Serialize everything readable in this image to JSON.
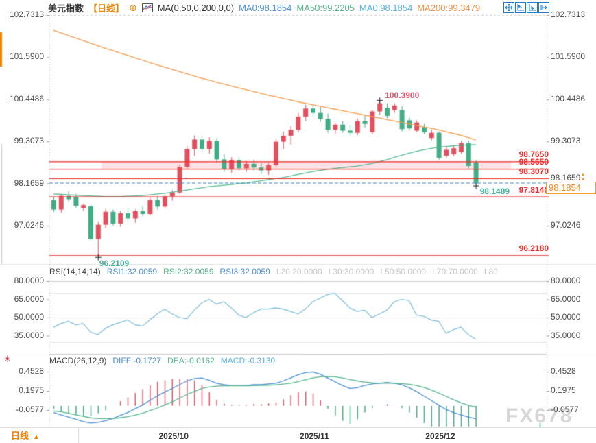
{
  "header": {
    "symbol": "美元指数",
    "period": "【日线】",
    "add_icon": "⊕",
    "ma_group": "MA(0,50,0,200,0,0)",
    "ma0": "MA0:98.1854",
    "ma50": "MA50:99.2205",
    "ma0_2": "MA0:98.1854",
    "ma200": "MA200:99.3479"
  },
  "toolbar": {
    "icons": [
      "pan-crosshair-icon",
      "zoom-axis-left-icon",
      "zoom-axis-right-icon",
      "pan-right-icon"
    ]
  },
  "main": {
    "axis_labels": [
      "102.7313",
      "101.5900",
      "100.4486",
      "99.3073",
      "98.1659",
      "97.0246"
    ],
    "level_labels": [
      "98.7650",
      "98.5650",
      "98.3070",
      "97.8140",
      "96.2180"
    ],
    "annotations": {
      "swing_high": "100.3900",
      "swing_low": "96.2109",
      "last_low": "98.1489"
    },
    "current_price": "98.1854"
  },
  "rsi": {
    "title": "RSI(14,14,14)",
    "rsi1": "RSI1:32.0059",
    "rsi2": "RSI2:32.0059",
    "rsi3": "RSI3:32.0059",
    "l20": "L20:20.0000",
    "l30": "L30:30.0000",
    "l50": "L50:50.0000",
    "l70": "L70:70.0000",
    "l80": "L80:",
    "axis_labels": [
      "80.0000",
      "65.0000",
      "50.0000",
      "35.0000"
    ]
  },
  "macd": {
    "title": "MACD(26,12,9)",
    "diff": "DIFF:-0.1727",
    "dea": "DEA:-0.0162",
    "macd": "MACD:-0.3130",
    "axis_labels": [
      "0.4528",
      "0.1975",
      "-0.0577"
    ]
  },
  "footer": {
    "period": "日线",
    "period_arrow": "▲"
  },
  "watermark": "FX678",
  "colors": {
    "up": "#e1505e",
    "down": "#42ad85",
    "ma50": "#53bb92",
    "ma200": "#f39a4b",
    "level_line": "#ee2b2b",
    "band_fill": "rgba(242,123,123,0.22)",
    "current_line": "#2f7ed8",
    "rsi_line": "#76badb",
    "diff_line": "#4a90d9",
    "dea_line": "#54b68c",
    "hist_pos": "#d8596b",
    "hist_neg": "#44ab82",
    "accent_orange": "#f08300",
    "grid": "#cccccc",
    "icon_blue": "#1a7fd4"
  },
  "chart_data": {
    "type": "candlestick",
    "title": "美元指数 日线 (US Dollar Index, Daily)",
    "price_axis_ticks": [
      102.7313,
      101.59,
      100.4486,
      99.3073,
      98.1659,
      97.0246
    ],
    "levels": [
      98.765,
      98.565,
      98.307,
      97.814,
      96.218
    ],
    "band": [
      98.565,
      98.765
    ],
    "current_price": 98.1854,
    "swing_high": {
      "index": 44,
      "price": 100.39
    },
    "swing_low": {
      "index": 6,
      "price": 96.2109
    },
    "last_low": {
      "index": 57,
      "price": 98.1489
    },
    "x_axis": {
      "months": [
        {
          "label": "2025/10",
          "index": 14
        },
        {
          "label": "2025/11",
          "index": 33
        },
        {
          "label": "2025/12",
          "index": 50
        }
      ]
    },
    "candles": [
      [
        97.72,
        97.8,
        97.4,
        97.46
      ],
      [
        97.46,
        97.88,
        97.38,
        97.83
      ],
      [
        97.83,
        97.95,
        97.68,
        97.74
      ],
      [
        97.8,
        97.88,
        97.5,
        97.56
      ],
      [
        97.5,
        97.62,
        97.42,
        97.58
      ],
      [
        97.55,
        97.6,
        96.6,
        96.66
      ],
      [
        96.66,
        97.12,
        96.2109,
        97.05
      ],
      [
        97.05,
        97.48,
        96.95,
        97.4
      ],
      [
        97.4,
        97.46,
        97.02,
        97.08
      ],
      [
        97.08,
        97.42,
        97.0,
        97.36
      ],
      [
        97.36,
        97.5,
        97.15,
        97.22
      ],
      [
        97.22,
        97.46,
        97.1,
        97.42
      ],
      [
        97.42,
        97.55,
        97.28,
        97.34
      ],
      [
        97.34,
        97.78,
        97.3,
        97.72
      ],
      [
        97.72,
        97.82,
        97.46,
        97.54
      ],
      [
        97.54,
        97.88,
        97.48,
        97.82
      ],
      [
        97.82,
        97.98,
        97.7,
        97.92
      ],
      [
        97.92,
        98.68,
        97.88,
        98.62
      ],
      [
        98.62,
        99.18,
        98.55,
        99.1
      ],
      [
        99.1,
        99.46,
        98.92,
        99.36
      ],
      [
        99.36,
        99.45,
        99.02,
        99.1
      ],
      [
        99.1,
        99.42,
        98.98,
        99.32
      ],
      [
        99.32,
        99.4,
        98.74,
        98.82
      ],
      [
        98.82,
        98.96,
        98.48,
        98.56
      ],
      [
        98.56,
        98.88,
        98.45,
        98.8
      ],
      [
        98.8,
        98.88,
        98.52,
        98.58
      ],
      [
        98.58,
        98.78,
        98.48,
        98.7
      ],
      [
        98.7,
        98.82,
        98.52,
        98.6
      ],
      [
        98.6,
        98.72,
        98.42,
        98.52
      ],
      [
        98.52,
        98.72,
        98.4,
        98.66
      ],
      [
        98.66,
        99.38,
        98.6,
        99.3
      ],
      [
        99.3,
        99.58,
        99.1,
        99.46
      ],
      [
        99.46,
        99.72,
        99.22,
        99.62
      ],
      [
        99.62,
        100.08,
        99.55,
        99.98
      ],
      [
        99.98,
        100.3,
        99.86,
        100.2
      ],
      [
        100.2,
        100.33,
        99.98,
        100.08
      ],
      [
        100.08,
        100.24,
        99.84,
        99.92
      ],
      [
        99.92,
        100.06,
        99.54,
        99.62
      ],
      [
        99.62,
        99.82,
        99.5,
        99.76
      ],
      [
        99.76,
        99.86,
        99.54,
        99.6
      ],
      [
        99.6,
        99.74,
        99.44,
        99.54
      ],
      [
        99.54,
        99.92,
        99.48,
        99.86
      ],
      [
        99.86,
        100.02,
        99.68,
        99.78
      ],
      [
        99.56,
        100.16,
        99.5,
        100.12
      ],
      [
        100.12,
        100.39,
        100.02,
        100.34
      ],
      [
        100.22,
        100.34,
        99.94,
        100.0
      ],
      [
        100.16,
        100.34,
        100.08,
        100.28
      ],
      [
        100.16,
        100.26,
        99.58,
        99.64
      ],
      [
        99.88,
        99.96,
        99.6,
        99.66
      ],
      [
        99.6,
        99.88,
        99.56,
        99.82
      ],
      [
        99.7,
        99.78,
        99.5,
        99.56
      ],
      [
        99.4,
        99.62,
        99.34,
        99.54
      ],
      [
        99.54,
        99.58,
        98.8,
        98.86
      ],
      [
        98.92,
        99.16,
        98.86,
        99.08
      ],
      [
        98.96,
        99.18,
        98.9,
        99.12
      ],
      [
        99.02,
        99.32,
        98.98,
        99.26
      ],
      [
        99.26,
        99.32,
        98.58,
        98.64
      ],
      [
        98.74,
        98.8,
        98.1489,
        98.1854
      ]
    ],
    "ma50": [
      97.88,
      97.87,
      97.86,
      97.85,
      97.84,
      97.83,
      97.82,
      97.81,
      97.81,
      97.81,
      97.82,
      97.83,
      97.84,
      97.86,
      97.88,
      97.9,
      97.93,
      97.96,
      97.99,
      98.02,
      98.05,
      98.08,
      98.1,
      98.12,
      98.14,
      98.16,
      98.18,
      98.21,
      98.24,
      98.27,
      98.3,
      98.33,
      98.37,
      98.41,
      98.45,
      98.49,
      98.52,
      98.55,
      98.58,
      98.6,
      98.62,
      98.64,
      98.67,
      98.71,
      98.76,
      98.81,
      98.87,
      98.93,
      98.99,
      99.04,
      99.08,
      99.12,
      99.15,
      99.17,
      99.19,
      99.2,
      99.21,
      99.2205
    ],
    "ma200": [
      102.32,
      102.25,
      102.18,
      102.11,
      102.04,
      101.97,
      101.9,
      101.83,
      101.77,
      101.7,
      101.64,
      101.57,
      101.51,
      101.44,
      101.38,
      101.32,
      101.26,
      101.2,
      101.14,
      101.08,
      101.02,
      100.97,
      100.91,
      100.86,
      100.81,
      100.76,
      100.71,
      100.66,
      100.61,
      100.56,
      100.52,
      100.47,
      100.43,
      100.38,
      100.34,
      100.3,
      100.26,
      100.22,
      100.18,
      100.14,
      100.1,
      100.06,
      100.02,
      99.98,
      99.94,
      99.9,
      99.86,
      99.82,
      99.78,
      99.74,
      99.7,
      99.66,
      99.62,
      99.57,
      99.52,
      99.47,
      99.41,
      99.3479
    ],
    "rsi": {
      "values": [
        42,
        45,
        47,
        44,
        45,
        38,
        36,
        41,
        44,
        46,
        48,
        44,
        43,
        48,
        53,
        57,
        53,
        50,
        49,
        56,
        62,
        65,
        61,
        63,
        58,
        52,
        50,
        54,
        57,
        57,
        58,
        57,
        55,
        53,
        57,
        63,
        66,
        69,
        70,
        64,
        58,
        55,
        56,
        50,
        53,
        56,
        63,
        65,
        64,
        52,
        51,
        48,
        47,
        37,
        40,
        42,
        36,
        32
      ],
      "grid": [
        80,
        70,
        50,
        30,
        20
      ],
      "ylim": [
        15,
        85
      ]
    },
    "macd": {
      "diff": [
        -0.09,
        -0.12,
        -0.15,
        -0.18,
        -0.21,
        -0.23,
        -0.22,
        -0.2,
        -0.17,
        -0.13,
        -0.09,
        -0.04,
        0.01,
        0.07,
        0.13,
        0.18,
        0.23,
        0.28,
        0.33,
        0.36,
        0.37,
        0.34,
        0.3,
        0.28,
        0.27,
        0.27,
        0.27,
        0.28,
        0.28,
        0.29,
        0.3,
        0.33,
        0.37,
        0.41,
        0.44,
        0.45,
        0.42,
        0.37,
        0.32,
        0.27,
        0.23,
        0.24,
        0.27,
        0.29,
        0.3,
        0.31,
        0.3,
        0.28,
        0.24,
        0.19,
        0.13,
        0.07,
        0.01,
        -0.05,
        -0.09,
        -0.12,
        -0.15,
        -0.1727
      ],
      "dea": [
        -0.07,
        -0.08,
        -0.1,
        -0.12,
        -0.14,
        -0.16,
        -0.17,
        -0.17,
        -0.17,
        -0.16,
        -0.145,
        -0.125,
        -0.1,
        -0.065,
        -0.03,
        0.01,
        0.05,
        0.1,
        0.15,
        0.19,
        0.23,
        0.25,
        0.26,
        0.265,
        0.265,
        0.265,
        0.266,
        0.268,
        0.27,
        0.273,
        0.278,
        0.287,
        0.3,
        0.32,
        0.345,
        0.37,
        0.385,
        0.39,
        0.385,
        0.37,
        0.35,
        0.33,
        0.315,
        0.305,
        0.3,
        0.3,
        0.3,
        0.295,
        0.285,
        0.27,
        0.245,
        0.21,
        0.17,
        0.125,
        0.08,
        0.04,
        0.005,
        -0.0162
      ]
    }
  }
}
